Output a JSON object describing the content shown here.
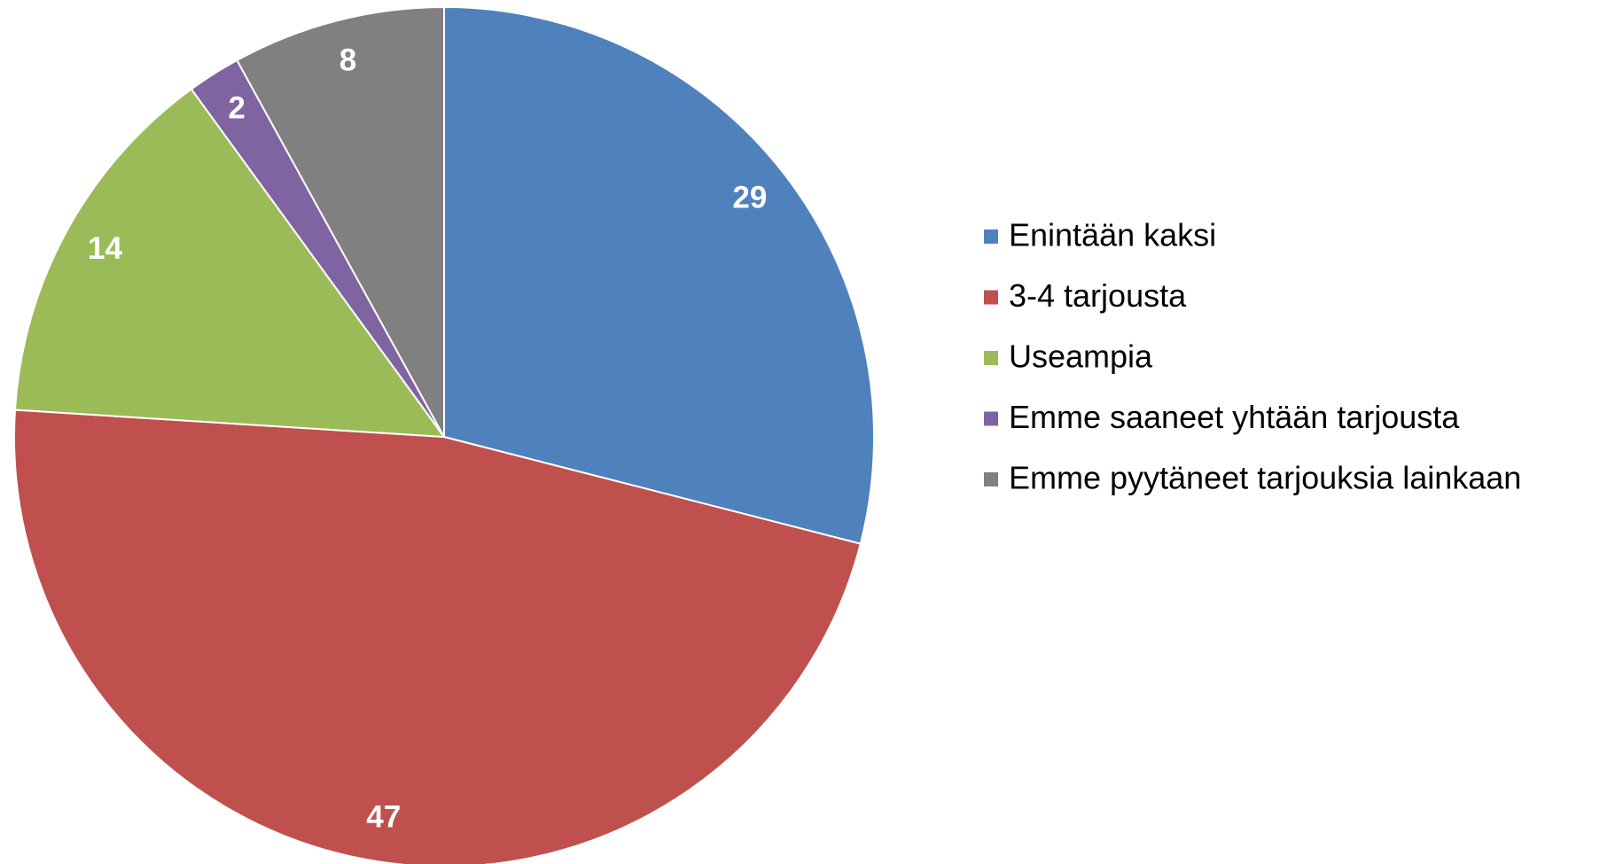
{
  "chart_data": {
    "type": "pie",
    "categories": [
      "Enintään kaksi",
      "3-4 tarjousta",
      "Useampia",
      "Emme saaneet yhtään tarjousta",
      "Emme pyytäneet tarjouksia lainkaan"
    ],
    "values": [
      29,
      47,
      14,
      2,
      8
    ],
    "colors": [
      "#4f81bd",
      "#c0504d",
      "#9bbb59",
      "#8064a2",
      "#808080"
    ],
    "legend": "right"
  }
}
